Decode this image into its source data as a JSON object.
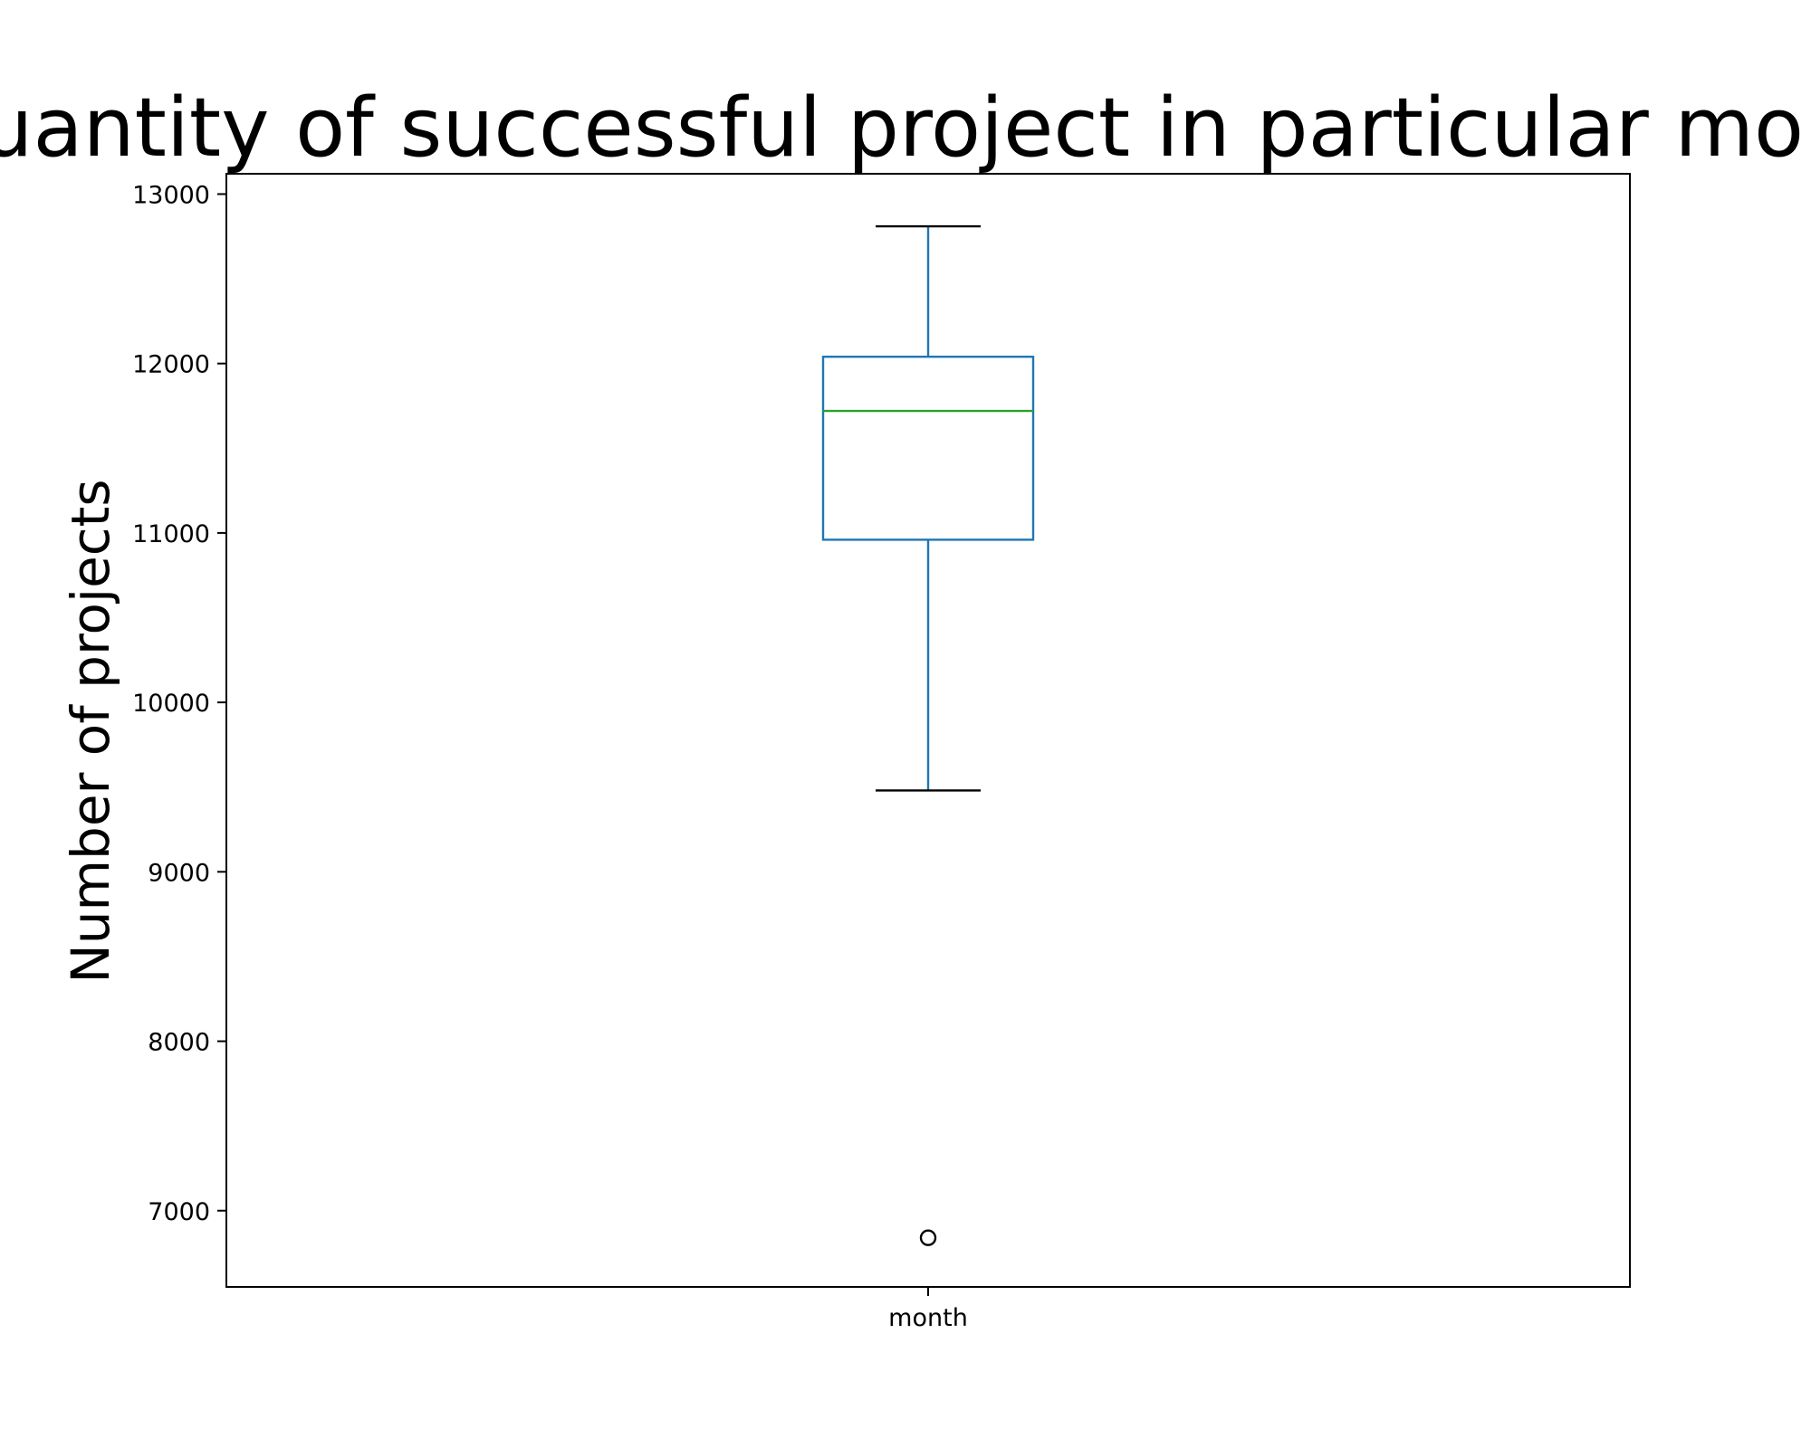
{
  "chart_data": {
    "type": "box",
    "title": "Quantity of successful project in particular month",
    "xlabel": "",
    "ylabel": "Number of projects",
    "categories": [
      "month"
    ],
    "ylim": [
      6550,
      13120
    ],
    "yticks": [
      7000,
      8000,
      9000,
      10000,
      11000,
      12000,
      13000
    ],
    "grid": false,
    "box": {
      "whisker_low": 9480,
      "q1": 10960,
      "median": 11720,
      "q3": 12040,
      "whisker_high": 12810,
      "outliers": [
        6840
      ]
    },
    "colors": {
      "box": "#1f77b4",
      "whisker": "#1f77b4",
      "cap": "#000000",
      "median": "#2ca02c",
      "outlier": "#000000",
      "axes": "#000000"
    }
  }
}
